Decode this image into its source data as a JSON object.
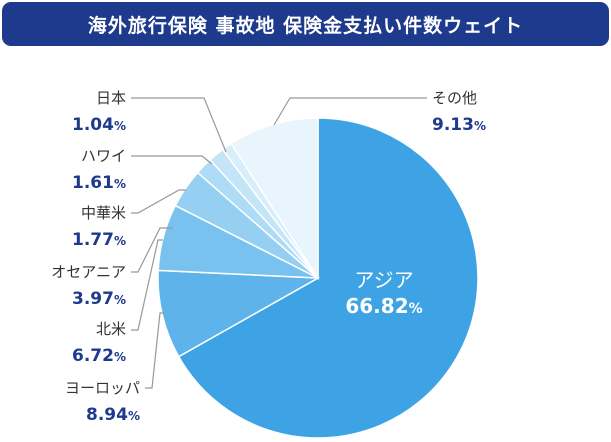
{
  "title": "海外旅行保険 事故地 保険金支払い件数ウェイト",
  "colors": {
    "title_bg": "#1e3a8c",
    "label_text": "#333333",
    "value_text": "#1e3a8c",
    "leader_line": "#999999",
    "slice_border": "#ffffff"
  },
  "chart_data": {
    "type": "pie",
    "title": "海外旅行保険 事故地 保険金支払い件数ウェイト",
    "unit": "%",
    "start_angle_deg": 0,
    "direction": "clockwise",
    "slices": [
      {
        "label": "アジア",
        "value": 66.82,
        "display": "66.82",
        "color": "#3ea3e4"
      },
      {
        "label": "ヨーロッパ",
        "value": 8.94,
        "display": "8.94",
        "color": "#5db3ea"
      },
      {
        "label": "北米",
        "value": 6.72,
        "display": "6.72",
        "color": "#79c2ef"
      },
      {
        "label": "オセアニア",
        "value": 3.97,
        "display": "3.97",
        "color": "#95cff2"
      },
      {
        "label": "中華米",
        "value": 1.77,
        "display": "1.77",
        "color": "#aedbf5"
      },
      {
        "label": "ハワイ",
        "value": 1.61,
        "display": "1.61",
        "color": "#c4e5f8"
      },
      {
        "label": "日本",
        "value": 1.04,
        "display": "1.04",
        "color": "#d7eefb"
      },
      {
        "label": "その他",
        "value": 9.13,
        "display": "9.13",
        "color": "#e8f5fc"
      }
    ]
  }
}
